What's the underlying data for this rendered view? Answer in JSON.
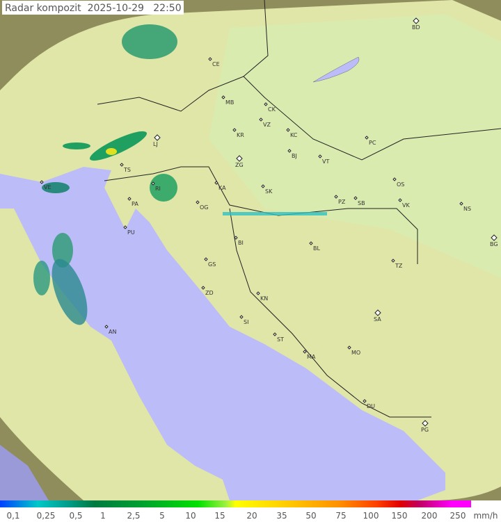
{
  "title": "Radar kompozit  2025-10-29   22:50",
  "legend": {
    "labels": [
      "0,1",
      "0,25",
      "0,5",
      "1",
      "2,5",
      "5",
      "10",
      "15",
      "20",
      "35",
      "50",
      "75",
      "100",
      "150",
      "200",
      "250"
    ],
    "unit": "mm/h"
  },
  "cities": [
    "BD",
    "CE",
    "MB",
    "CK",
    "VZ",
    "KR",
    "KC",
    "LJ",
    "PC",
    "BJ",
    "ZG",
    "VT",
    "TS",
    "OS",
    "VE",
    "SK",
    "RI",
    "KA",
    "PZ",
    "SB",
    "VK",
    "NS",
    "PA",
    "OG",
    "PU",
    "BI",
    "BL",
    "BG",
    "GS",
    "TZ",
    "ZD",
    "KN",
    "SA",
    "SI",
    "AN",
    "ST",
    "MA",
    "MO",
    "DU",
    "PG"
  ],
  "colors": {
    "land": "#d8d89a",
    "outer_land": "#8a8a5a",
    "sea": "#bcbcf8",
    "coverage": "#e4edb0"
  }
}
